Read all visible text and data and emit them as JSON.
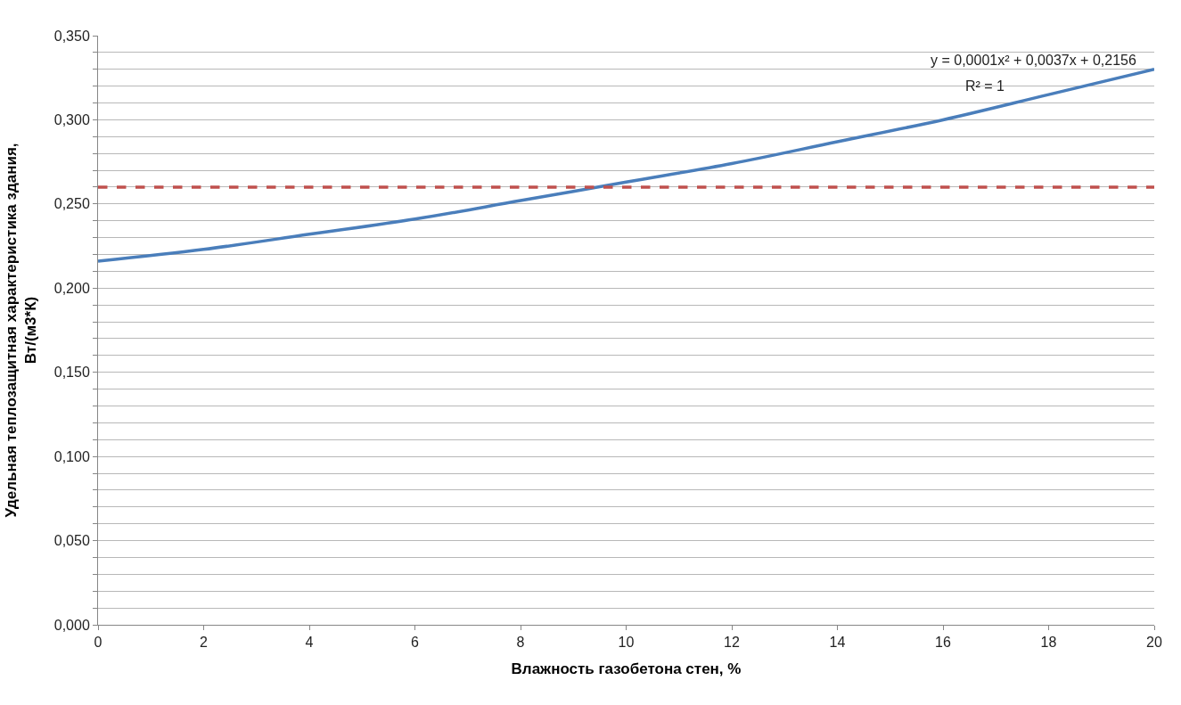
{
  "chart_data": {
    "type": "line",
    "xlabel": "Влажность газобетона стен, %",
    "ylabel": "Удельная теплозащитная характеристика здания,\nВт/(м3*К)",
    "x": [
      0,
      2,
      4,
      6,
      8,
      10,
      12,
      14,
      16,
      18,
      20
    ],
    "series": [
      {
        "color": "#4a7ebb",
        "values": [
          0.216,
          0.223,
          0.232,
          0.241,
          0.252,
          0.263,
          0.274,
          0.287,
          0.3,
          0.315,
          0.33
        ]
      }
    ],
    "ref_lines": [
      {
        "axis": "y",
        "value": 0.26,
        "label": null,
        "color": "#c0504d",
        "line_style": "dashed"
      }
    ],
    "annotations": [
      "y = 0,0001x² + 0,0037x + 0,2156",
      "R² = 1"
    ],
    "xlim": [
      0,
      20
    ],
    "xticks": [
      0,
      2,
      4,
      6,
      8,
      10,
      12,
      14,
      16,
      18,
      20
    ],
    "ylim": [
      0,
      0.35
    ],
    "yticks": [
      {
        "value": 0,
        "label": "0,000"
      },
      {
        "value": 0.01,
        "label": null
      },
      {
        "value": 0.02,
        "label": null
      },
      {
        "value": 0.03,
        "label": null
      },
      {
        "value": 0.04,
        "label": null
      },
      {
        "value": 0.05,
        "label": "0,050"
      },
      {
        "value": 0.06,
        "label": null
      },
      {
        "value": 0.07,
        "label": null
      },
      {
        "value": 0.08,
        "label": null
      },
      {
        "value": 0.09,
        "label": null
      },
      {
        "value": 0.1,
        "label": "0,100"
      },
      {
        "value": 0.11,
        "label": null
      },
      {
        "value": 0.12,
        "label": null
      },
      {
        "value": 0.13,
        "label": null
      },
      {
        "value": 0.14,
        "label": null
      },
      {
        "value": 0.15,
        "label": "0,150"
      },
      {
        "value": 0.16,
        "label": null
      },
      {
        "value": 0.17,
        "label": null
      },
      {
        "value": 0.18,
        "label": null
      },
      {
        "value": 0.19,
        "label": null
      },
      {
        "value": 0.2,
        "label": "0,200"
      },
      {
        "value": 0.21,
        "label": null
      },
      {
        "value": 0.22,
        "label": null
      },
      {
        "value": 0.23,
        "label": null
      },
      {
        "value": 0.24,
        "label": null
      },
      {
        "value": 0.25,
        "label": "0,250"
      },
      {
        "value": 0.26,
        "label": null
      },
      {
        "value": 0.27,
        "label": null
      },
      {
        "value": 0.28,
        "label": null
      },
      {
        "value": 0.29,
        "label": null
      },
      {
        "value": 0.3,
        "label": "0,300"
      },
      {
        "value": 0.31,
        "label": null
      },
      {
        "value": 0.32,
        "label": null
      },
      {
        "value": 0.33,
        "label": null
      },
      {
        "value": 0.34,
        "label": null
      },
      {
        "value": 0.35,
        "label": "0,350"
      }
    ],
    "grid": "y",
    "marker": "none",
    "line_style": "solid"
  }
}
